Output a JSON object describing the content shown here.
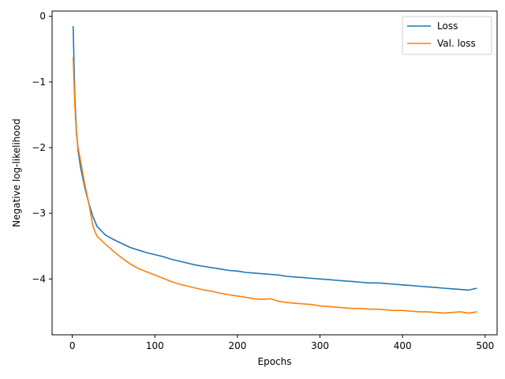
{
  "chart_data": {
    "type": "line",
    "title": "",
    "xlabel": "Epochs",
    "ylabel": "Negative log-likelihood",
    "xlim": [
      -24.5,
      514.5
    ],
    "ylim": [
      -4.85,
      0.08
    ],
    "x_ticks": [
      0,
      100,
      200,
      300,
      400,
      500
    ],
    "y_ticks": [
      0,
      -1,
      -2,
      -3,
      -4
    ],
    "x_tick_labels": [
      "0",
      "100",
      "200",
      "300",
      "400",
      "500"
    ],
    "y_tick_labels": [
      "0",
      "−1",
      "−2",
      "−3",
      "−4"
    ],
    "grid": false,
    "legend_position": "top-right",
    "series": [
      {
        "name": "Loss",
        "color": "#1f77b4",
        "x": [
          1,
          3,
          5,
          7,
          10,
          15,
          20,
          25,
          30,
          40,
          50,
          60,
          70,
          80,
          90,
          100,
          110,
          120,
          130,
          140,
          150,
          160,
          170,
          180,
          190,
          200,
          210,
          220,
          230,
          240,
          250,
          260,
          270,
          280,
          290,
          300,
          310,
          320,
          330,
          340,
          350,
          360,
          370,
          380,
          390,
          400,
          410,
          420,
          430,
          440,
          450,
          460,
          470,
          480,
          490
        ],
        "y": [
          -0.15,
          -1.2,
          -1.75,
          -2.05,
          -2.3,
          -2.6,
          -2.85,
          -3.05,
          -3.2,
          -3.33,
          -3.4,
          -3.46,
          -3.52,
          -3.56,
          -3.6,
          -3.63,
          -3.66,
          -3.7,
          -3.73,
          -3.76,
          -3.79,
          -3.81,
          -3.83,
          -3.85,
          -3.87,
          -3.88,
          -3.9,
          -3.91,
          -3.92,
          -3.93,
          -3.94,
          -3.96,
          -3.97,
          -3.98,
          -3.99,
          -4.0,
          -4.01,
          -4.02,
          -4.03,
          -4.04,
          -4.05,
          -4.06,
          -4.06,
          -4.07,
          -4.08,
          -4.09,
          -4.1,
          -4.11,
          -4.12,
          -4.13,
          -4.14,
          -4.15,
          -4.16,
          -4.17,
          -4.14
        ]
      },
      {
        "name": "Val. loss",
        "color": "#ff7f0e",
        "x": [
          1,
          3,
          5,
          7,
          10,
          15,
          20,
          25,
          30,
          40,
          50,
          60,
          70,
          80,
          90,
          100,
          110,
          120,
          130,
          140,
          150,
          160,
          170,
          180,
          190,
          200,
          210,
          220,
          230,
          240,
          250,
          260,
          270,
          280,
          290,
          300,
          310,
          320,
          330,
          340,
          350,
          360,
          370,
          380,
          390,
          400,
          410,
          420,
          430,
          440,
          450,
          460,
          470,
          480,
          490
        ],
        "y": [
          -0.62,
          -1.35,
          -1.8,
          -2.0,
          -2.2,
          -2.55,
          -2.85,
          -3.2,
          -3.35,
          -3.47,
          -3.58,
          -3.68,
          -3.77,
          -3.84,
          -3.89,
          -3.94,
          -3.99,
          -4.04,
          -4.08,
          -4.11,
          -4.14,
          -4.17,
          -4.19,
          -4.22,
          -4.24,
          -4.26,
          -4.28,
          -4.3,
          -4.31,
          -4.3,
          -4.34,
          -4.36,
          -4.37,
          -4.38,
          -4.39,
          -4.41,
          -4.42,
          -4.43,
          -4.44,
          -4.45,
          -4.45,
          -4.46,
          -4.46,
          -4.47,
          -4.48,
          -4.48,
          -4.49,
          -4.5,
          -4.5,
          -4.51,
          -4.52,
          -4.51,
          -4.5,
          -4.52,
          -4.5
        ]
      }
    ]
  }
}
